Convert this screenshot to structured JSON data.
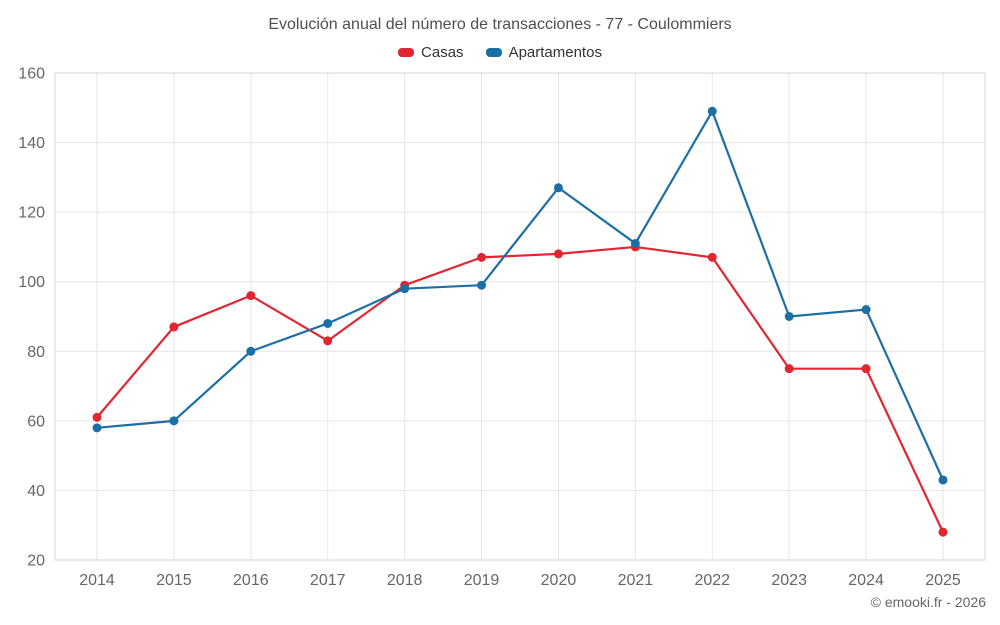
{
  "title": "Evolución anual del número de transacciones - 77 - Coulommiers",
  "footer": "© emooki.fr - 2026",
  "colors": {
    "casas": "#e12632",
    "apartamentos": "#1c6fa5",
    "grid": "#e6e6e6",
    "plot_border": "#d6d6d6",
    "axis_text": "#666666",
    "title_text": "#4f4f4f"
  },
  "chart_data": {
    "type": "line",
    "title": "Evolución anual del número de transacciones - 77 - Coulommiers",
    "x": [
      2014,
      2015,
      2016,
      2017,
      2018,
      2019,
      2020,
      2021,
      2022,
      2023,
      2024,
      2025
    ],
    "series": [
      {
        "name": "Casas",
        "color": "#e12632",
        "values": [
          61,
          87,
          96,
          83,
          99,
          107,
          108,
          110,
          107,
          75,
          75,
          28
        ]
      },
      {
        "name": "Apartamentos",
        "color": "#1c6fa5",
        "values": [
          58,
          60,
          80,
          88,
          98,
          99,
          127,
          111,
          149,
          90,
          92,
          43
        ]
      }
    ],
    "xlabel": "",
    "ylabel": "",
    "ylim": [
      20,
      160
    ],
    "ytick_step": 20,
    "grid": true,
    "legend_position": "top"
  }
}
